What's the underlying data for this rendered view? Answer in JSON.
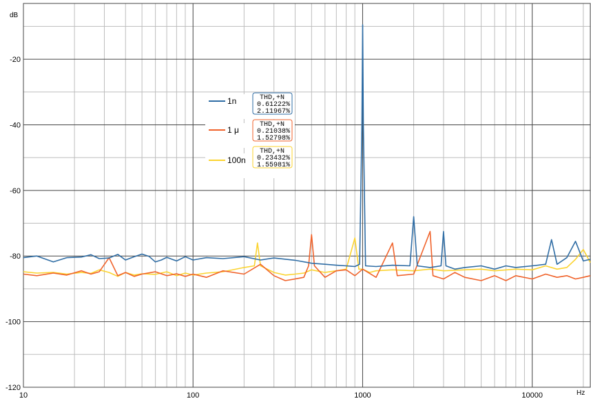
{
  "chart_data": {
    "type": "line",
    "title": "",
    "xlabel": "Hz",
    "ylabel": "dB",
    "x_scale": "log",
    "xlim": [
      10,
      22000
    ],
    "ylim": [
      -120,
      -3
    ],
    "x_ticks": [
      {
        "value": 10,
        "label": "10"
      },
      {
        "value": 100,
        "label": "100"
      },
      {
        "value": 1000,
        "label": "1000"
      },
      {
        "value": 10000,
        "label": "10000"
      }
    ],
    "y_ticks": [
      {
        "value": -20,
        "label": "-20"
      },
      {
        "value": -40,
        "label": "-40"
      },
      {
        "value": -60,
        "label": "-60"
      },
      {
        "value": -80,
        "label": "-80"
      },
      {
        "value": -100,
        "label": "-100"
      },
      {
        "value": -120,
        "label": "-120"
      }
    ],
    "grid": true,
    "legend_position": "upper-left-center",
    "series": [
      {
        "name": "1n",
        "color": "#2e6ca4",
        "thd_header": "THD,+N",
        "thd": "0.61222%",
        "thd_n": "2.11967%",
        "points": [
          [
            10,
            -80.5
          ],
          [
            12,
            -80
          ],
          [
            15,
            -81.8
          ],
          [
            18,
            -80.5
          ],
          [
            22,
            -80.3
          ],
          [
            25,
            -79.6
          ],
          [
            28,
            -80.8
          ],
          [
            32,
            -80.6
          ],
          [
            36,
            -79.5
          ],
          [
            40,
            -81.2
          ],
          [
            45,
            -80.2
          ],
          [
            50,
            -79.4
          ],
          [
            55,
            -80.1
          ],
          [
            60,
            -81.8
          ],
          [
            65,
            -81.2
          ],
          [
            70,
            -80.4
          ],
          [
            80,
            -81.5
          ],
          [
            90,
            -80.2
          ],
          [
            100,
            -81.2
          ],
          [
            120,
            -80.5
          ],
          [
            150,
            -80.8
          ],
          [
            200,
            -80.2
          ],
          [
            250,
            -81.2
          ],
          [
            300,
            -80.6
          ],
          [
            400,
            -81.3
          ],
          [
            500,
            -82.2
          ],
          [
            600,
            -82.5
          ],
          [
            700,
            -82.8
          ],
          [
            800,
            -83
          ],
          [
            900,
            -83.2
          ],
          [
            960,
            -82.5
          ],
          [
            990,
            -40
          ],
          [
            1000,
            -9.5
          ],
          [
            1010,
            -40
          ],
          [
            1040,
            -83
          ],
          [
            1200,
            -83.2
          ],
          [
            1500,
            -82.8
          ],
          [
            1900,
            -83
          ],
          [
            2000,
            -68
          ],
          [
            2100,
            -83
          ],
          [
            2500,
            -83.5
          ],
          [
            2900,
            -83
          ],
          [
            3000,
            -72.5
          ],
          [
            3100,
            -83
          ],
          [
            3500,
            -84
          ],
          [
            4000,
            -83.5
          ],
          [
            5000,
            -83
          ],
          [
            6000,
            -84
          ],
          [
            7000,
            -83
          ],
          [
            8000,
            -83.5
          ],
          [
            10000,
            -83
          ],
          [
            12000,
            -82.5
          ],
          [
            13000,
            -75
          ],
          [
            14000,
            -82.5
          ],
          [
            16000,
            -80.5
          ],
          [
            18000,
            -75.5
          ],
          [
            20000,
            -81.5
          ],
          [
            22000,
            -81
          ]
        ]
      },
      {
        "name": "1 μ",
        "color": "#f0622a",
        "thd_header": "THD,+N",
        "thd": "0.21038%",
        "thd_n": "1.52798%",
        "points": [
          [
            10,
            -85.5
          ],
          [
            12,
            -86
          ],
          [
            15,
            -85.2
          ],
          [
            18,
            -85.8
          ],
          [
            22,
            -84.5
          ],
          [
            25,
            -85.5
          ],
          [
            28,
            -84.8
          ],
          [
            32,
            -80.5
          ],
          [
            36,
            -86
          ],
          [
            40,
            -85
          ],
          [
            45,
            -86.2
          ],
          [
            50,
            -85.5
          ],
          [
            60,
            -84.8
          ],
          [
            70,
            -86
          ],
          [
            80,
            -85.4
          ],
          [
            90,
            -86.2
          ],
          [
            100,
            -85.5
          ],
          [
            120,
            -86.5
          ],
          [
            150,
            -84.5
          ],
          [
            200,
            -85.5
          ],
          [
            250,
            -82.5
          ],
          [
            300,
            -86
          ],
          [
            350,
            -87.5
          ],
          [
            400,
            -87
          ],
          [
            450,
            -86.5
          ],
          [
            480,
            -83
          ],
          [
            500,
            -73.5
          ],
          [
            520,
            -83
          ],
          [
            600,
            -86.5
          ],
          [
            700,
            -84.5
          ],
          [
            800,
            -84.2
          ],
          [
            900,
            -86
          ],
          [
            1000,
            -84
          ],
          [
            1200,
            -86.5
          ],
          [
            1500,
            -76
          ],
          [
            1600,
            -86
          ],
          [
            2000,
            -85.5
          ],
          [
            2500,
            -72.5
          ],
          [
            2600,
            -86
          ],
          [
            3000,
            -87
          ],
          [
            3500,
            -85
          ],
          [
            4000,
            -86.5
          ],
          [
            5000,
            -87.5
          ],
          [
            6000,
            -86
          ],
          [
            7000,
            -87.5
          ],
          [
            8000,
            -86
          ],
          [
            10000,
            -87
          ],
          [
            12000,
            -85.5
          ],
          [
            14000,
            -86.5
          ],
          [
            16000,
            -86
          ],
          [
            18000,
            -87
          ],
          [
            20000,
            -86.5
          ],
          [
            22000,
            -86
          ]
        ]
      },
      {
        "name": "100n",
        "color": "#fbd32e",
        "thd_header": "THD,+N",
        "thd": "0.23432%",
        "thd_n": "1.55981%",
        "points": [
          [
            10,
            -84.8
          ],
          [
            12,
            -85.2
          ],
          [
            15,
            -85
          ],
          [
            18,
            -85.5
          ],
          [
            22,
            -85
          ],
          [
            25,
            -85.3
          ],
          [
            28,
            -84.2
          ],
          [
            32,
            -85
          ],
          [
            36,
            -86.2
          ],
          [
            40,
            -85
          ],
          [
            45,
            -85.8
          ],
          [
            50,
            -85.4
          ],
          [
            60,
            -85.6
          ],
          [
            70,
            -84.8
          ],
          [
            80,
            -86
          ],
          [
            90,
            -85.2
          ],
          [
            100,
            -85.8
          ],
          [
            120,
            -85.2
          ],
          [
            150,
            -84.8
          ],
          [
            200,
            -83.5
          ],
          [
            230,
            -83
          ],
          [
            240,
            -76
          ],
          [
            250,
            -83
          ],
          [
            300,
            -85
          ],
          [
            350,
            -85.8
          ],
          [
            400,
            -85.5
          ],
          [
            450,
            -85.2
          ],
          [
            500,
            -84.2
          ],
          [
            600,
            -85
          ],
          [
            700,
            -84.5
          ],
          [
            800,
            -84
          ],
          [
            900,
            -74.5
          ],
          [
            950,
            -84
          ],
          [
            1000,
            -84
          ],
          [
            1100,
            -85
          ],
          [
            1200,
            -84.5
          ],
          [
            1500,
            -84.2
          ],
          [
            2000,
            -84.5
          ],
          [
            2500,
            -84
          ],
          [
            3000,
            -84.5
          ],
          [
            4000,
            -84.2
          ],
          [
            5000,
            -84
          ],
          [
            6000,
            -84.5
          ],
          [
            8000,
            -84
          ],
          [
            10000,
            -84.2
          ],
          [
            12000,
            -83
          ],
          [
            14000,
            -84
          ],
          [
            16000,
            -83.5
          ],
          [
            18000,
            -81
          ],
          [
            20000,
            -78
          ],
          [
            22000,
            -82
          ]
        ]
      }
    ]
  }
}
